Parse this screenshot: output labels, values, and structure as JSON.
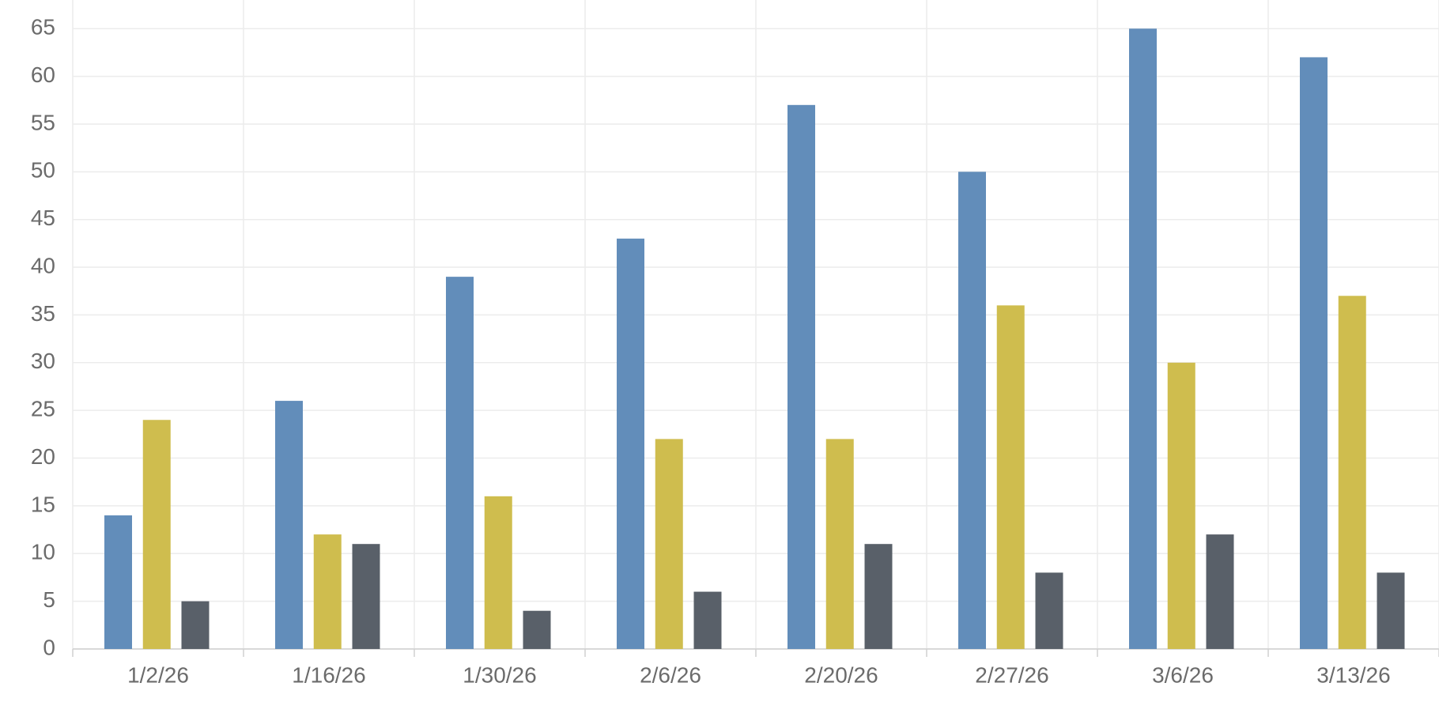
{
  "chart_data": {
    "type": "bar",
    "categories": [
      "1/2/26",
      "1/16/26",
      "1/30/26",
      "2/6/26",
      "2/20/26",
      "2/27/26",
      "3/6/26",
      "3/13/26"
    ],
    "series": [
      {
        "color": "#628dba",
        "values": [
          14,
          26,
          39,
          43,
          57,
          50,
          65,
          62
        ]
      },
      {
        "color": "#cfbd4e",
        "values": [
          24,
          12,
          16,
          22,
          22,
          36,
          30,
          37
        ]
      },
      {
        "color": "#596069",
        "values": [
          5,
          11,
          4,
          6,
          11,
          8,
          12,
          8
        ]
      }
    ],
    "ylim": [
      0,
      68
    ],
    "yticks": [
      0,
      5,
      10,
      15,
      20,
      25,
      30,
      35,
      40,
      45,
      50,
      55,
      60,
      65
    ],
    "grid": true
  }
}
